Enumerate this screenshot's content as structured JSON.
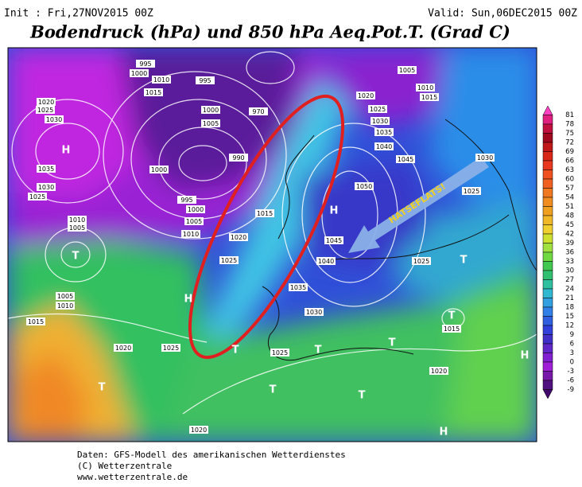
{
  "header": {
    "init": "Init : Fri,27NOV2015 00Z",
    "valid": "Valid: Sun,06DEC2015 00Z",
    "title": "Bodendruck (hPa) und 850 hPa Aeq.Pot.T. (Grad C)"
  },
  "annotation": "HATSEFLATS!",
  "colorbar": {
    "labels": [
      81,
      78,
      75,
      72,
      69,
      66,
      63,
      60,
      57,
      54,
      51,
      48,
      45,
      42,
      39,
      36,
      33,
      30,
      27,
      24,
      21,
      18,
      15,
      12,
      9,
      6,
      3,
      0,
      -3,
      -6,
      -9
    ],
    "colors": [
      "#ff40c0",
      "#e02080",
      "#c01040",
      "#a00820",
      "#c01818",
      "#d82818",
      "#e83820",
      "#f05020",
      "#f06020",
      "#f07820",
      "#f08c20",
      "#f0a020",
      "#f0b828",
      "#f0d030",
      "#d0e030",
      "#a0e040",
      "#70d840",
      "#40c850",
      "#30c070",
      "#30c0a0",
      "#30b8d0",
      "#30a0e0",
      "#3080e8",
      "#3060e0",
      "#3040d8",
      "#4030c8",
      "#6028c8",
      "#8020d0",
      "#a020d8",
      "#7818a8",
      "#501080",
      "#400868"
    ]
  },
  "map": {
    "pressure_labels": [
      995,
      1000,
      1010,
      1015,
      1020,
      1025,
      1030,
      995,
      1000,
      1005,
      970,
      990,
      1000,
      995,
      1000,
      1005,
      1010,
      1015,
      1020,
      1025,
      1035,
      1030,
      1025,
      1010,
      1005,
      1005,
      1010,
      1015,
      1020,
      1025,
      1030,
      1035,
      1040,
      1045,
      1050,
      1045,
      1040,
      1035,
      1030,
      1025,
      1020,
      1005,
      1010,
      1015,
      1030,
      1025,
      1025,
      1015,
      1020,
      1020,
      1025
    ],
    "centers": [
      "H",
      "H",
      "H",
      "T",
      "T",
      "T",
      "T",
      "T",
      "T",
      "T",
      "T",
      "T",
      "H",
      "H"
    ]
  },
  "footer": [
    "Daten: GFS-Modell des amerikanischen Wetterdienstes",
    "(C) Wetterzentrale",
    "www.wetterzentrale.de"
  ]
}
